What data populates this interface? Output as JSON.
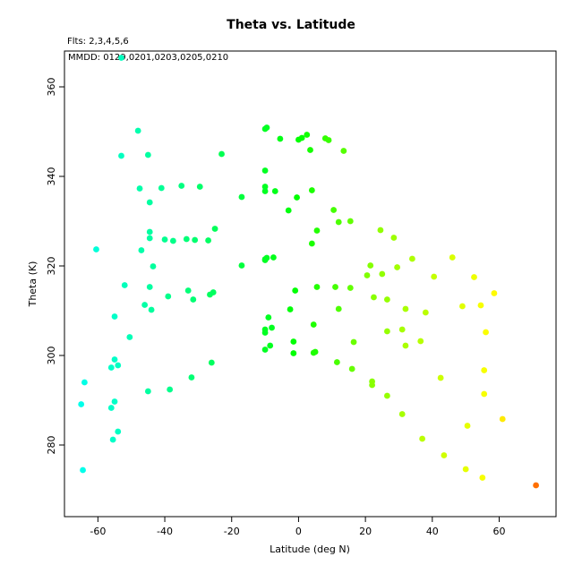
{
  "chart_data": {
    "type": "scatter",
    "title": "Theta vs. Latitude",
    "notes": [
      "Flts: 2,3,4,5,6",
      "MMDD: 0129,0201,0203,0205,0210"
    ],
    "xlabel": "Latitude (deg N)",
    "ylabel": "Theta (K)",
    "xlim": [
      -70,
      77
    ],
    "ylim": [
      264,
      368
    ],
    "xticks": [
      -60,
      -40,
      -20,
      0,
      20,
      40,
      60
    ],
    "yticks": [
      280,
      300,
      320,
      340,
      360
    ],
    "grid": false,
    "legend": "none",
    "color_scale": "hue by latitude: cyan (south) to green (equator) to yellow to orange (north)",
    "points": [
      {
        "x": -53,
        "y": 366.5
      },
      {
        "x": -48,
        "y": 350.2
      },
      {
        "x": -53,
        "y": 344.6
      },
      {
        "x": -45,
        "y": 344.8
      },
      {
        "x": -23,
        "y": 345.0
      },
      {
        "x": -47.5,
        "y": 337.3
      },
      {
        "x": -41,
        "y": 337.4
      },
      {
        "x": -35,
        "y": 337.9
      },
      {
        "x": -29.5,
        "y": 337.7
      },
      {
        "x": -44.5,
        "y": 334.2
      },
      {
        "x": -17,
        "y": 335.4
      },
      {
        "x": -44.5,
        "y": 327.6
      },
      {
        "x": -44.5,
        "y": 326.2
      },
      {
        "x": -40,
        "y": 325.9
      },
      {
        "x": -37.5,
        "y": 325.6
      },
      {
        "x": -33.5,
        "y": 326.0
      },
      {
        "x": -31,
        "y": 325.8
      },
      {
        "x": -27,
        "y": 325.7
      },
      {
        "x": -25,
        "y": 328.3
      },
      {
        "x": -60.5,
        "y": 323.7
      },
      {
        "x": -47,
        "y": 323.5
      },
      {
        "x": -43.5,
        "y": 319.9
      },
      {
        "x": -17,
        "y": 320.1
      },
      {
        "x": -52,
        "y": 315.7
      },
      {
        "x": -44.5,
        "y": 315.3
      },
      {
        "x": -33,
        "y": 314.5
      },
      {
        "x": -25.5,
        "y": 314.1
      },
      {
        "x": -26.5,
        "y": 313.6
      },
      {
        "x": -39,
        "y": 313.2
      },
      {
        "x": -31.5,
        "y": 312.5
      },
      {
        "x": -46,
        "y": 311.3
      },
      {
        "x": -44,
        "y": 310.2
      },
      {
        "x": -55,
        "y": 308.7
      },
      {
        "x": -50.5,
        "y": 304.1
      },
      {
        "x": -55,
        "y": 299.1
      },
      {
        "x": -54,
        "y": 297.8
      },
      {
        "x": -56,
        "y": 297.3
      },
      {
        "x": -26,
        "y": 298.4
      },
      {
        "x": -32,
        "y": 295.1
      },
      {
        "x": -64,
        "y": 294.0
      },
      {
        "x": -45,
        "y": 292.0
      },
      {
        "x": -38.5,
        "y": 292.4
      },
      {
        "x": -55,
        "y": 289.7
      },
      {
        "x": -56,
        "y": 288.3
      },
      {
        "x": -65,
        "y": 289.1
      },
      {
        "x": -54,
        "y": 283.0
      },
      {
        "x": -55.5,
        "y": 281.2
      },
      {
        "x": -64.5,
        "y": 274.4
      },
      {
        "x": -10,
        "y": 350.6
      },
      {
        "x": -9.5,
        "y": 350.9
      },
      {
        "x": -5.5,
        "y": 348.4
      },
      {
        "x": 0,
        "y": 348.2
      },
      {
        "x": 1,
        "y": 348.6
      },
      {
        "x": 2.5,
        "y": 349.3
      },
      {
        "x": 8,
        "y": 348.5
      },
      {
        "x": 9,
        "y": 348.1
      },
      {
        "x": 3.5,
        "y": 345.9
      },
      {
        "x": 13.5,
        "y": 345.7
      },
      {
        "x": -10,
        "y": 341.3
      },
      {
        "x": -10,
        "y": 337.7
      },
      {
        "x": -10,
        "y": 336.7
      },
      {
        "x": -7,
        "y": 336.7
      },
      {
        "x": 4,
        "y": 336.9
      },
      {
        "x": -0.5,
        "y": 335.3
      },
      {
        "x": 10.5,
        "y": 332.5
      },
      {
        "x": -3,
        "y": 332.4
      },
      {
        "x": 12,
        "y": 329.8
      },
      {
        "x": 15.5,
        "y": 330.0
      },
      {
        "x": 5.5,
        "y": 327.9
      },
      {
        "x": 4,
        "y": 325.0
      },
      {
        "x": -10,
        "y": 321.5
      },
      {
        "x": -9.5,
        "y": 321.8
      },
      {
        "x": -10,
        "y": 321.3
      },
      {
        "x": -7.5,
        "y": 321.9
      },
      {
        "x": 5.5,
        "y": 315.3
      },
      {
        "x": 11,
        "y": 315.3
      },
      {
        "x": 15.5,
        "y": 315.1
      },
      {
        "x": -1,
        "y": 314.5
      },
      {
        "x": 12,
        "y": 310.4
      },
      {
        "x": -2.5,
        "y": 310.3
      },
      {
        "x": -9,
        "y": 308.5
      },
      {
        "x": 4.5,
        "y": 306.9
      },
      {
        "x": -8,
        "y": 306.2
      },
      {
        "x": -10,
        "y": 305.8
      },
      {
        "x": -10,
        "y": 305.1
      },
      {
        "x": -1.5,
        "y": 303.1
      },
      {
        "x": 16.5,
        "y": 303.0
      },
      {
        "x": -8.5,
        "y": 302.2
      },
      {
        "x": -10,
        "y": 301.3
      },
      {
        "x": -1.5,
        "y": 300.5
      },
      {
        "x": 4.5,
        "y": 300.6
      },
      {
        "x": 5,
        "y": 300.8
      },
      {
        "x": 11.5,
        "y": 298.5
      },
      {
        "x": 16,
        "y": 297.0
      },
      {
        "x": 24.5,
        "y": 328.0
      },
      {
        "x": 28.5,
        "y": 326.3
      },
      {
        "x": 34,
        "y": 321.6
      },
      {
        "x": 46,
        "y": 321.9
      },
      {
        "x": 21.5,
        "y": 320.1
      },
      {
        "x": 29.5,
        "y": 319.7
      },
      {
        "x": 20.5,
        "y": 317.9
      },
      {
        "x": 25,
        "y": 318.2
      },
      {
        "x": 40.5,
        "y": 317.6
      },
      {
        "x": 52.5,
        "y": 317.5
      },
      {
        "x": 58.5,
        "y": 313.9
      },
      {
        "x": 22.5,
        "y": 313.0
      },
      {
        "x": 26.5,
        "y": 312.5
      },
      {
        "x": 32,
        "y": 310.4
      },
      {
        "x": 38,
        "y": 309.6
      },
      {
        "x": 49,
        "y": 311.0
      },
      {
        "x": 54.5,
        "y": 311.2
      },
      {
        "x": 26.5,
        "y": 305.4
      },
      {
        "x": 31,
        "y": 305.8
      },
      {
        "x": 36.5,
        "y": 303.2
      },
      {
        "x": 56,
        "y": 305.2
      },
      {
        "x": 32,
        "y": 302.2
      },
      {
        "x": 55.5,
        "y": 296.7
      },
      {
        "x": 42.5,
        "y": 295.0
      },
      {
        "x": 22,
        "y": 294.2
      },
      {
        "x": 22,
        "y": 293.4
      },
      {
        "x": 26.5,
        "y": 291.0
      },
      {
        "x": 55.5,
        "y": 291.4
      },
      {
        "x": 31,
        "y": 286.9
      },
      {
        "x": 61,
        "y": 285.8
      },
      {
        "x": 50.5,
        "y": 284.3
      },
      {
        "x": 37,
        "y": 281.4
      },
      {
        "x": 43.5,
        "y": 277.7
      },
      {
        "x": 50,
        "y": 274.6
      },
      {
        "x": 55,
        "y": 272.7
      },
      {
        "x": 71,
        "y": 271.0
      }
    ]
  }
}
